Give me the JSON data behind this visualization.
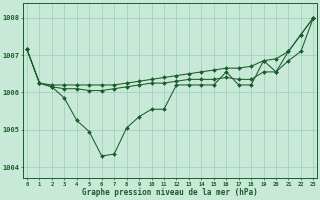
{
  "background_color": "#c8e8d8",
  "grid_color": "#99ccbb",
  "line_color": "#1a5c2a",
  "marker_color": "#1a5c2a",
  "xlabel": "Graphe pression niveau de la mer (hPa)",
  "ylim": [
    1003.7,
    1008.4
  ],
  "xlim": [
    -0.3,
    23.3
  ],
  "yticks": [
    1004,
    1005,
    1006,
    1007,
    1008
  ],
  "xticks": [
    0,
    1,
    2,
    3,
    4,
    5,
    6,
    7,
    8,
    9,
    10,
    11,
    12,
    13,
    14,
    15,
    16,
    17,
    18,
    19,
    20,
    21,
    22,
    23
  ],
  "y_jagged": [
    1007.15,
    1006.25,
    1006.15,
    1005.85,
    1005.25,
    1004.95,
    1004.3,
    1004.35,
    1005.05,
    1005.35,
    1005.55,
    1005.55,
    1006.2,
    1006.2,
    1006.2,
    1006.2,
    1006.55,
    1006.2,
    1006.2,
    1006.85,
    1006.55,
    1007.1,
    1007.55,
    1008.0
  ],
  "y_middle": [
    1007.15,
    1006.25,
    1006.15,
    1006.1,
    1006.1,
    1006.05,
    1006.05,
    1006.1,
    1006.15,
    1006.2,
    1006.25,
    1006.25,
    1006.3,
    1006.35,
    1006.35,
    1006.35,
    1006.4,
    1006.35,
    1006.35,
    1006.55,
    1006.55,
    1006.85,
    1007.1,
    1008.0
  ],
  "y_top": [
    1007.15,
    1006.25,
    1006.2,
    1006.2,
    1006.2,
    1006.2,
    1006.2,
    1006.2,
    1006.25,
    1006.3,
    1006.35,
    1006.4,
    1006.45,
    1006.5,
    1006.55,
    1006.6,
    1006.65,
    1006.65,
    1006.7,
    1006.85,
    1006.9,
    1007.1,
    1007.55,
    1008.0
  ]
}
